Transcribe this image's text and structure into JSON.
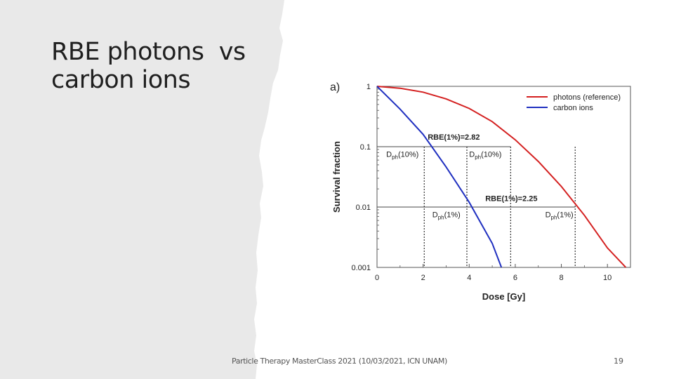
{
  "slide": {
    "title_lines": [
      "RBE photons  vs",
      "carbon ions"
    ],
    "footer": "Particle Therapy MasterClass 2021 (10/03/2021, ICN UNAM)",
    "page_number": "19"
  },
  "chart_data": {
    "type": "line",
    "panel_label": "a)",
    "xlabel": "Dose [Gy]",
    "ylabel": "Survival fraction",
    "xlim": [
      0,
      11
    ],
    "ylim": [
      0.001,
      1
    ],
    "yscale": "log",
    "x_ticks": [
      0,
      2,
      4,
      6,
      8,
      10
    ],
    "y_ticks": [
      {
        "value": 1,
        "label": "1"
      },
      {
        "value": 0.1,
        "label": "0.1"
      },
      {
        "value": 0.01,
        "label": "0.01"
      },
      {
        "value": 0.001,
        "label": "0.001"
      }
    ],
    "grid": false,
    "legend_position": "top-right",
    "series": [
      {
        "name": "photons (reference)",
        "color": "#d42020",
        "x": [
          0,
          1,
          2,
          3,
          4,
          5,
          6,
          7,
          8,
          9,
          10,
          10.8
        ],
        "y": [
          1,
          0.93,
          0.8,
          0.62,
          0.43,
          0.26,
          0.13,
          0.057,
          0.022,
          0.0073,
          0.0021,
          0.001
        ]
      },
      {
        "name": "carbon ions",
        "color": "#2030c0",
        "x": [
          0,
          1,
          2,
          3,
          4,
          5,
          5.4
        ],
        "y": [
          1,
          0.42,
          0.16,
          0.046,
          0.012,
          0.0025,
          0.001
        ]
      }
    ],
    "reference_lines": [
      {
        "y": 0.1,
        "x_from": 0,
        "x_to": 5.8
      },
      {
        "y": 0.01,
        "x_from": 0,
        "x_to": 8.6
      }
    ],
    "dotted_verticals": [
      2.05,
      3.9,
      5.8,
      8.6
    ],
    "annotations": [
      {
        "id": "rbe-10",
        "text": "RBE(1%)=2.82",
        "x": 2.2,
        "y": 0.13
      },
      {
        "id": "rbe-1",
        "text": "RBE(1%)=2.25",
        "x": 4.7,
        "y": 0.0125
      },
      {
        "id": "dph-10-a",
        "base": "D",
        "sub": "ph",
        "tail": "(10%)",
        "x": 0.4,
        "y": 0.068
      },
      {
        "id": "dph-10-b",
        "base": "D",
        "sub": "ph",
        "tail": "(10%)",
        "x": 4.0,
        "y": 0.068
      },
      {
        "id": "dph-1-a",
        "base": "D",
        "sub": "ph",
        "tail": "(1%)",
        "x": 2.4,
        "y": 0.0068
      },
      {
        "id": "dph-1-b",
        "base": "D",
        "sub": "ph",
        "tail": "(1%)",
        "x": 7.3,
        "y": 0.0068
      }
    ]
  }
}
